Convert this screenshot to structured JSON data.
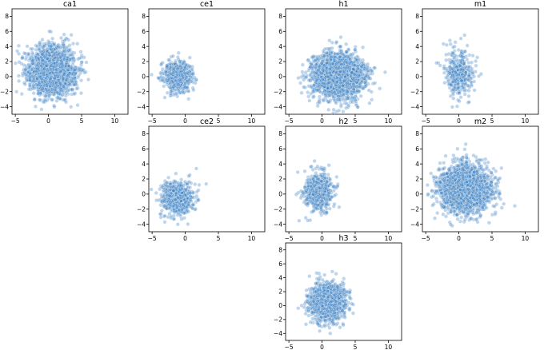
{
  "chart_data": [
    {
      "type": "scatter",
      "title": "ca1",
      "xticks": [
        -5,
        0,
        5,
        10
      ],
      "yticks": [
        -4,
        -2,
        0,
        2,
        4,
        6,
        8
      ],
      "xlim": [
        -5.5,
        12
      ],
      "ylim": [
        -5,
        9
      ],
      "n_points": 2600,
      "center": [
        0.6,
        0.7
      ],
      "spread": [
        2.1,
        1.9
      ],
      "color": "#1f77b4"
    },
    {
      "type": "scatter",
      "title": "ce1",
      "xticks": [
        -5,
        0,
        5,
        10
      ],
      "yticks": [
        -4,
        -2,
        0,
        2,
        4,
        6,
        8
      ],
      "xlim": [
        -5.5,
        12
      ],
      "ylim": [
        -5,
        9
      ],
      "n_points": 700,
      "center": [
        -1.2,
        0.0
      ],
      "spread": [
        1.3,
        1.2
      ],
      "color": "#1f77b4"
    },
    {
      "type": "scatter",
      "title": "h1",
      "xticks": [
        -5,
        0,
        5,
        10
      ],
      "yticks": [
        -4,
        -2,
        0,
        2,
        4,
        6,
        8
      ],
      "xlim": [
        -5.5,
        12
      ],
      "ylim": [
        -5,
        9
      ],
      "n_points": 3000,
      "center": [
        2.5,
        0.1
      ],
      "spread": [
        2.3,
        1.7
      ],
      "color": "#1f77b4"
    },
    {
      "type": "scatter",
      "title": "m1",
      "xticks": [
        -5,
        0,
        5,
        10
      ],
      "yticks": [
        -4,
        -2,
        0,
        2,
        4,
        6,
        8
      ],
      "xlim": [
        -5.5,
        12
      ],
      "ylim": [
        -5,
        9
      ],
      "n_points": 450,
      "center": [
        0.0,
        0.4
      ],
      "spread": [
        1.3,
        1.9
      ],
      "color": "#1f77b4"
    },
    {
      "type": "scatter",
      "title": "ce2",
      "xticks": [
        -5,
        0,
        5,
        10
      ],
      "yticks": [
        -4,
        -2,
        0,
        2,
        4,
        6,
        8
      ],
      "xlim": [
        -5.5,
        12
      ],
      "ylim": [
        -5,
        9
      ],
      "n_points": 800,
      "center": [
        -1.2,
        -0.6
      ],
      "spread": [
        1.4,
        1.3
      ],
      "color": "#1f77b4"
    },
    {
      "type": "scatter",
      "title": "h2",
      "xticks": [
        -5,
        0,
        5,
        10
      ],
      "yticks": [
        -4,
        -2,
        0,
        2,
        4,
        6,
        8
      ],
      "xlim": [
        -5.5,
        12
      ],
      "ylim": [
        -5,
        9
      ],
      "n_points": 800,
      "center": [
        -0.5,
        0.3
      ],
      "spread": [
        1.3,
        1.5
      ],
      "color": "#1f77b4"
    },
    {
      "type": "scatter",
      "title": "m2",
      "xticks": [
        -5,
        0,
        5,
        10
      ],
      "yticks": [
        -4,
        -2,
        0,
        2,
        4,
        6,
        8
      ],
      "xlim": [
        -5.5,
        12
      ],
      "ylim": [
        -5,
        9
      ],
      "n_points": 3200,
      "center": [
        0.9,
        0.7
      ],
      "spread": [
        2.2,
        1.8
      ],
      "color": "#1f77b4"
    },
    {
      "type": "scatter",
      "title": "h3",
      "xticks": [
        -5,
        0,
        5,
        10
      ],
      "yticks": [
        -4,
        -2,
        0,
        2,
        4,
        6,
        8
      ],
      "xlim": [
        -5.5,
        12
      ],
      "ylim": [
        -5,
        9
      ],
      "n_points": 1400,
      "center": [
        0.8,
        0.5
      ],
      "spread": [
        1.7,
        1.6
      ],
      "color": "#1f77b4"
    }
  ]
}
